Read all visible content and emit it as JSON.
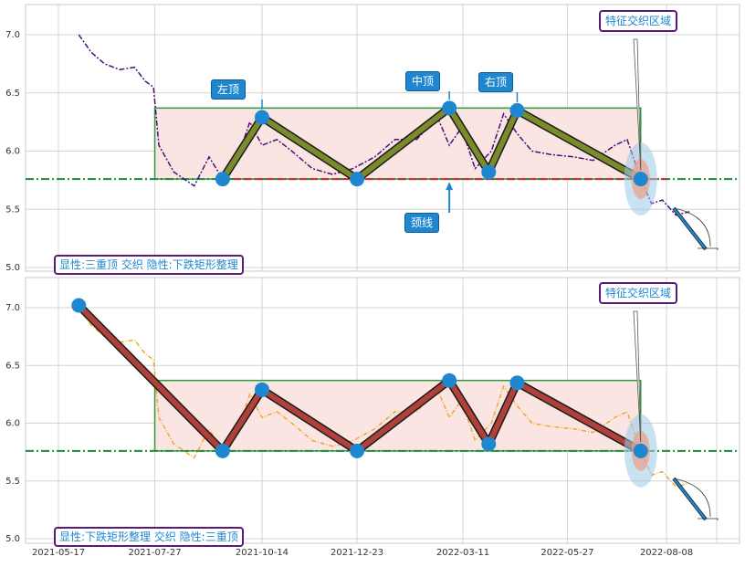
{
  "colors": {
    "grid": "#d4d4d4",
    "price_top": "#4b0f7a",
    "price_bottom": "#f0a830",
    "rect_fill": "#fbe5e3",
    "rect_stroke": "#2e9a3e",
    "neckline": "#1f8a3a",
    "neckline_red": "#d62728",
    "pattern_top": "#7b8a2a",
    "pattern_bottom": "#b0403a",
    "marker": "#1f87cf",
    "callout_bg": "#1f87cf",
    "box_border": "#5a1a7a",
    "ellipse": "#9ccbe8"
  },
  "top_panel": {
    "labels": {
      "left_top": "左顶",
      "mid_top": "中顶",
      "right_top": "右顶",
      "neckline": "颈线",
      "feature": "特征交织区域",
      "info": "显性:三重顶 交织 隐性:下跌矩形整理"
    }
  },
  "bottom_panel": {
    "labels": {
      "feature": "特征交织区域",
      "info": "显性:下跌矩形整理 交织 隐性:三重顶"
    }
  },
  "chart_data": [
    {
      "type": "line",
      "x_ticks": [
        "2021-05-17",
        "2021-07-27",
        "2021-10-14",
        "2021-12-23",
        "2022-03-11",
        "2022-05-27",
        "2022-08-08"
      ],
      "y_ticks": [
        5.0,
        5.5,
        6.0,
        6.5,
        7.0
      ],
      "ylim": [
        5.0,
        7.2
      ],
      "grid": true,
      "series": [
        {
          "x": [
            "2021-06-01",
            "2021-06-10",
            "2021-06-20",
            "2021-07-01",
            "2021-07-12",
            "2021-07-20",
            "2021-07-26",
            "2021-07-30",
            "2021-08-10",
            "2021-08-25",
            "2021-09-05",
            "2021-09-15",
            "2021-09-25",
            "2021-10-05",
            "2021-10-14",
            "2021-10-25",
            "2021-11-05",
            "2021-11-20",
            "2021-12-05",
            "2021-12-20",
            "2022-01-05",
            "2022-01-20",
            "2022-02-05",
            "2022-02-20",
            "2022-03-01",
            "2022-03-10",
            "2022-03-20",
            "2022-04-01",
            "2022-04-10",
            "2022-04-20",
            "2022-05-01",
            "2022-05-15",
            "2022-06-01",
            "2022-06-15",
            "2022-07-01",
            "2022-07-10",
            "2022-07-20",
            "2022-07-28",
            "2022-08-05",
            "2022-08-15",
            "2022-08-25"
          ],
          "values": [
            7.0,
            6.85,
            6.75,
            6.7,
            6.72,
            6.6,
            6.55,
            6.05,
            5.82,
            5.7,
            5.95,
            5.76,
            5.9,
            6.25,
            6.05,
            6.1,
            6.0,
            5.85,
            5.8,
            5.85,
            5.95,
            6.1,
            6.1,
            6.3,
            6.05,
            6.2,
            5.85,
            6.0,
            6.32,
            6.15,
            6.0,
            5.97,
            5.95,
            5.92,
            6.05,
            6.1,
            5.76,
            5.55,
            5.58,
            5.45,
            5.48
          ]
        }
      ],
      "pattern_points": {
        "x": [
          "2021-06-01",
          "2021-09-15",
          "2021-10-14",
          "2021-12-23",
          "2022-03-01",
          "2022-03-30",
          "2022-04-20",
          "2022-07-20"
        ],
        "values": [
          7.02,
          5.76,
          6.29,
          5.76,
          6.37,
          5.82,
          6.35,
          5.76
        ]
      },
      "rectangle": {
        "x_start": "2021-07-27",
        "x_end": "2022-07-20",
        "y_low": 5.76,
        "y_high": 6.37
      },
      "neckline": 5.76
    }
  ]
}
